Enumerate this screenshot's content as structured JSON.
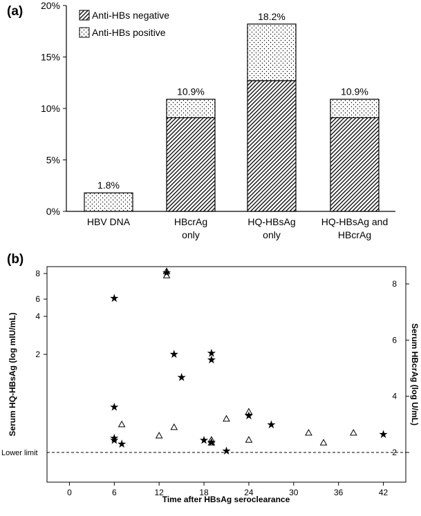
{
  "chart_data": [
    {
      "type": "bar",
      "panel_label": "(a)",
      "categories": [
        [
          "HBV DNA"
        ],
        [
          "HBcrAg",
          "only"
        ],
        [
          "HQ-HBsAg",
          "only"
        ],
        [
          "HQ-HBsAg and",
          "HBcrAg"
        ]
      ],
      "series": [
        {
          "name": "Anti-HBs negative",
          "values": [
            0,
            9.1,
            12.7,
            9.1
          ],
          "pattern": "hatched"
        },
        {
          "name": "Anti-HBs positive",
          "values": [
            1.8,
            1.8,
            5.5,
            1.8
          ],
          "pattern": "dotted"
        }
      ],
      "totals_labels": [
        "1.8%",
        "10.9%",
        "18.2%",
        "10.9%"
      ],
      "y_ticks": [
        "0%",
        "5%",
        "10%",
        "15%",
        "20%"
      ],
      "ylim": [
        0,
        20
      ],
      "legend_position": "top-left"
    },
    {
      "type": "scatter",
      "panel_label": "(b)",
      "xlabel": "Time after HBsAg seroclearance",
      "ylabel_left": "Serum HQ-HBsAg (log mIU/mL)",
      "ylabel_right": "Serum HBcrAg (log U/mL)",
      "x_ticks": [
        "0",
        "6",
        "12",
        "18",
        "24",
        "30",
        "36",
        "42"
      ],
      "xlim": [
        -3,
        45
      ],
      "left_y_ticks": [
        "2",
        "4",
        "6",
        "8"
      ],
      "right_y_ticks": [
        "2",
        "4",
        "6",
        "8"
      ],
      "lower_limit_label": "Lower limit",
      "hq_hbsag_star": [
        {
          "x": 6,
          "y": 6.1
        },
        {
          "x": 13,
          "y": 8.1
        },
        {
          "x": 14,
          "y": 2.04
        },
        {
          "x": 15,
          "y": 1.77
        },
        {
          "x": 19,
          "y": 2.09
        },
        {
          "x": 19,
          "y": 1.95
        },
        {
          "x": 6,
          "y": 1.47
        },
        {
          "x": 24,
          "y": 1.38
        },
        {
          "x": 27,
          "y": 1.29
        },
        {
          "x": 6,
          "y": 1.15
        },
        {
          "x": 6,
          "y": 1.13
        },
        {
          "x": 7,
          "y": 1.09
        },
        {
          "x": 18,
          "y": 1.13
        },
        {
          "x": 19,
          "y": 1.11
        },
        {
          "x": 21,
          "y": 1.02
        },
        {
          "x": 42,
          "y": 1.19
        }
      ],
      "hbcrag_triangle": [
        {
          "x": 13,
          "y": 8.45
        },
        {
          "x": 13,
          "y": 8.3
        },
        {
          "x": 7,
          "y": 3.0
        },
        {
          "x": 14,
          "y": 2.9
        },
        {
          "x": 21,
          "y": 3.2
        },
        {
          "x": 24,
          "y": 3.45
        },
        {
          "x": 12,
          "y": 2.6
        },
        {
          "x": 19,
          "y": 2.45
        },
        {
          "x": 19,
          "y": 2.35
        },
        {
          "x": 24,
          "y": 2.45
        },
        {
          "x": 32,
          "y": 2.7
        },
        {
          "x": 34,
          "y": 2.35
        },
        {
          "x": 38,
          "y": 2.7
        }
      ]
    }
  ]
}
